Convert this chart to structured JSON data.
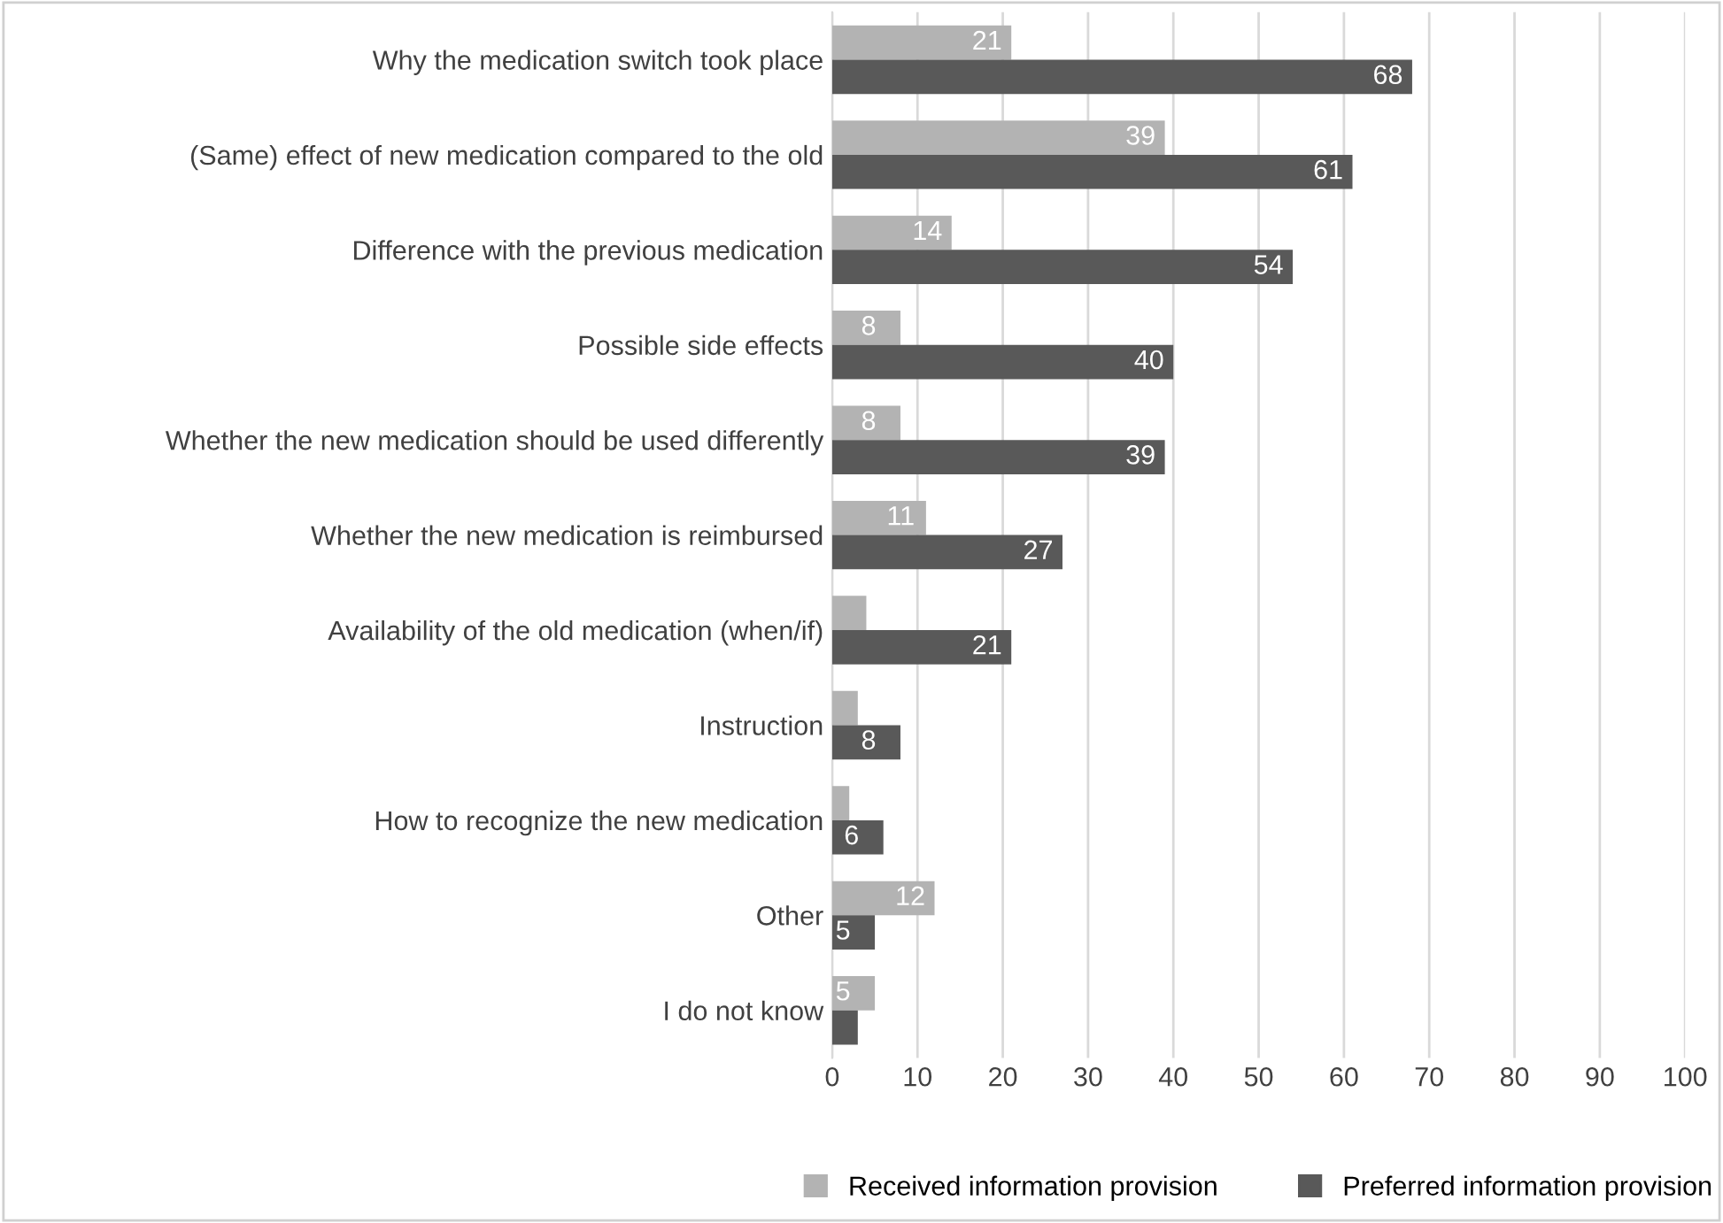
{
  "chart_data": {
    "type": "bar",
    "orientation": "horizontal",
    "categories": [
      "Why the medication switch took place",
      "(Same) effect of new medication compared to the old",
      "Difference with the previous medication",
      "Possible side effects",
      "Whether the new medication should be used differently",
      "Whether the new medication is reimbursed",
      "Availability of the old medication (when/if)",
      "Instruction",
      "How to recognize the new medication",
      "Other",
      "I do not know"
    ],
    "series": [
      {
        "name": "Received information provision",
        "color": "#b3b3b3",
        "values": [
          21,
          39,
          14,
          8,
          8,
          11,
          4,
          3,
          2,
          12,
          5
        ],
        "value_labels": [
          "21",
          "39",
          "14",
          "8",
          "8",
          "11",
          null,
          null,
          null,
          "12",
          "5"
        ]
      },
      {
        "name": "Preferred information provision",
        "color": "#595959",
        "values": [
          68,
          61,
          54,
          40,
          39,
          27,
          21,
          8,
          6,
          5,
          3
        ],
        "value_labels": [
          "68",
          "61",
          "54",
          "40",
          "39",
          "27",
          "21",
          "8",
          "6",
          "5",
          null
        ]
      }
    ],
    "xlim": [
      0,
      100
    ],
    "xticks": [
      0,
      10,
      20,
      30,
      40,
      50,
      60,
      70,
      80,
      90,
      100
    ],
    "grid": "x",
    "legend": "bottom"
  }
}
